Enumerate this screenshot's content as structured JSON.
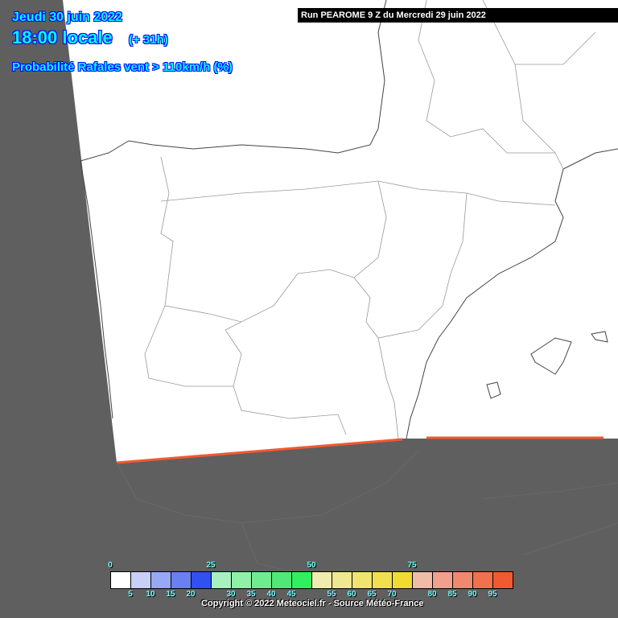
{
  "header": {
    "date": "Jeudi 30 juin 2022",
    "time": "18:00 locale",
    "lead": "(+ 31h)",
    "parameter": "Probabilité Rafales vent > 110km/h (%)",
    "run": "Run PEAROME 9 Z du Mercredi 29 juin 2022"
  },
  "colors": {
    "background_outside_domain": "#5f5f5f",
    "domain": "#ffffff",
    "borders": "#888888",
    "title_text": "#00ffff",
    "edge_band": "#f05a30"
  },
  "legend": {
    "major_labels": [
      "0",
      "25",
      "50",
      "75"
    ],
    "minor_labels": [
      "5",
      "10",
      "15",
      "20",
      "30",
      "35",
      "40",
      "45",
      "55",
      "60",
      "65",
      "70",
      "80",
      "85",
      "90",
      "95"
    ],
    "colors": [
      "#ffffff",
      "#c8d0f8",
      "#98a8f4",
      "#6a80f0",
      "#3050f0",
      "#a8f0c0",
      "#90f0a8",
      "#70ec90",
      "#50e878",
      "#30f060",
      "#f0ecb0",
      "#f0e890",
      "#f0e470",
      "#f0e050",
      "#f0dc30",
      "#f0bca8",
      "#f0a08c",
      "#f08870",
      "#f07050",
      "#f05a30"
    ]
  },
  "footer": {
    "copyright": "Copyright © 2022 Meteociel.fr - Source Météo-France"
  }
}
